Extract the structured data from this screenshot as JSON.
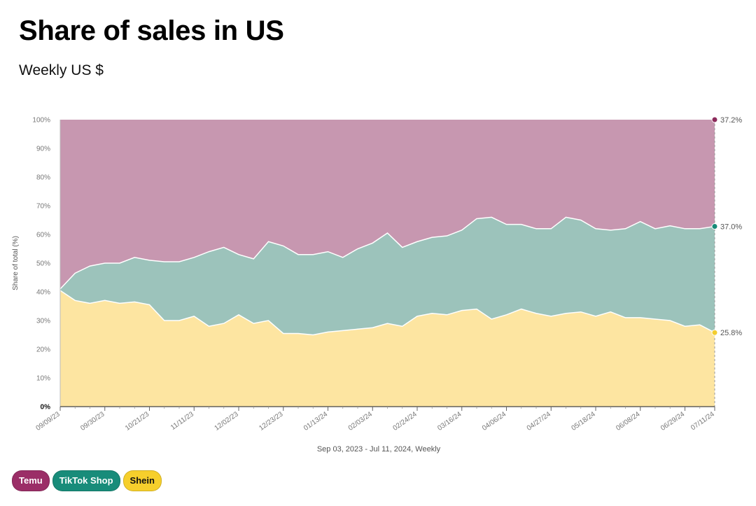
{
  "header": {
    "title": "Share of sales in US",
    "subtitle": "Weekly US $"
  },
  "colors": {
    "temu": "#c797b0",
    "tiktok": "#9cc3bb",
    "shein": "#fde5a1",
    "temu_dot": "#8c2b5b",
    "tiktok_dot": "#168a77",
    "shein_dot": "#f2cd2f",
    "temu_pill": "#9b2e67",
    "tiktok_pill": "#188c7a",
    "shein_pill": "#f6cf2c"
  },
  "legend": [
    {
      "label": "Temu",
      "key": "temu"
    },
    {
      "label": "TikTok Shop",
      "key": "tiktok"
    },
    {
      "label": "Shein",
      "key": "shein"
    }
  ],
  "chart_data": {
    "type": "area",
    "stacked": true,
    "ylabel": "Share of total (%)",
    "xlabel": "Sep 03, 2023 - Jul 11, 2024, Weekly",
    "ylim": [
      0,
      100
    ],
    "y_ticks": [
      "0%",
      "10%",
      "20%",
      "30%",
      "40%",
      "50%",
      "60%",
      "70%",
      "80%",
      "90%",
      "100%"
    ],
    "x_tick_labels": [
      {
        "index": 0,
        "label": "09/09/23"
      },
      {
        "index": 3,
        "label": "09/30/23"
      },
      {
        "index": 6,
        "label": "10/21/23"
      },
      {
        "index": 9,
        "label": "11/11/23"
      },
      {
        "index": 12,
        "label": "12/02/23"
      },
      {
        "index": 15,
        "label": "12/23/23"
      },
      {
        "index": 18,
        "label": "01/13/24"
      },
      {
        "index": 21,
        "label": "02/03/24"
      },
      {
        "index": 24,
        "label": "02/24/24"
      },
      {
        "index": 27,
        "label": "03/16/24"
      },
      {
        "index": 30,
        "label": "04/06/24"
      },
      {
        "index": 33,
        "label": "04/27/24"
      },
      {
        "index": 36,
        "label": "05/18/24"
      },
      {
        "index": 39,
        "label": "06/08/24"
      },
      {
        "index": 42,
        "label": "06/29/24"
      },
      {
        "index": 44,
        "label": "07/11/24"
      }
    ],
    "series": [
      {
        "name": "Shein",
        "key": "shein",
        "values": [
          40.5,
          37,
          36,
          37,
          36,
          36.5,
          35.5,
          30,
          30,
          31.5,
          28,
          29,
          32,
          29,
          30,
          25.5,
          25.5,
          25,
          26,
          26.5,
          27,
          27.5,
          29,
          28,
          31.5,
          32.5,
          32,
          33.5,
          34,
          30.5,
          32,
          34,
          32.5,
          31.5,
          32.5,
          33,
          31.5,
          33,
          31,
          31,
          30.5,
          30,
          28,
          28.5,
          25.8
        ]
      },
      {
        "name": "TikTok Shop",
        "key": "tiktok",
        "values": [
          0.5,
          9.5,
          13,
          13,
          14,
          15.5,
          15.5,
          20.5,
          20.5,
          20.5,
          26,
          26.5,
          21,
          22.5,
          27.5,
          30.5,
          27.5,
          28,
          28,
          25.5,
          28,
          29.5,
          31.5,
          27.5,
          26,
          26.5,
          27.5,
          28,
          31.5,
          35.5,
          31.5,
          29.5,
          29.5,
          30.5,
          33.5,
          32,
          30.5,
          28.5,
          31,
          33.5,
          31.5,
          33,
          34,
          33.5,
          37.0
        ]
      },
      {
        "name": "Temu",
        "key": "temu",
        "values": [
          59,
          53.5,
          51,
          50,
          50,
          48,
          49,
          49.5,
          49.5,
          48,
          46,
          44.5,
          47,
          48.5,
          42.5,
          44,
          47,
          47,
          46,
          48,
          45,
          43,
          39.5,
          44.5,
          42.5,
          41,
          40.5,
          38.5,
          34.5,
          34,
          36.5,
          36.5,
          38,
          38,
          34,
          35,
          38,
          38.5,
          38,
          35.5,
          38,
          37,
          38,
          38,
          37.2
        ]
      }
    ],
    "end_labels": [
      {
        "key": "temu",
        "label": "37.2%"
      },
      {
        "key": "tiktok",
        "label": "37.0%"
      },
      {
        "key": "shein",
        "label": "25.8%"
      }
    ]
  }
}
